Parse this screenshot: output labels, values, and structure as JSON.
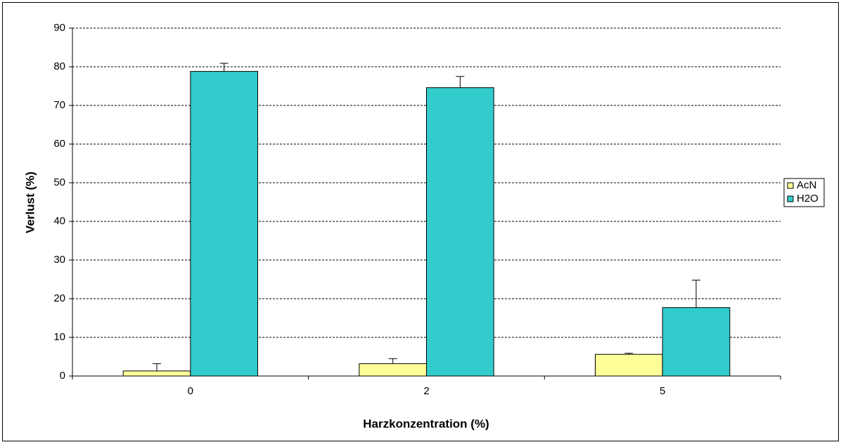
{
  "chart_data": {
    "type": "bar",
    "x_label": "Harzkonzentration (%)",
    "y_label": "Verlust (%)",
    "categories": [
      "0",
      "2",
      "5"
    ],
    "series": [
      {
        "name": "AcN",
        "color": "#ffff99",
        "values": [
          1.3,
          3.2,
          5.6
        ],
        "errors": [
          1.9,
          1.3,
          0.3
        ]
      },
      {
        "name": "H2O",
        "color": "#33cccc",
        "values": [
          78.8,
          74.6,
          17.7
        ],
        "errors": [
          2.1,
          2.9,
          7.1
        ]
      }
    ],
    "ylim": [
      0,
      90
    ],
    "yticks": [
      0,
      10,
      20,
      30,
      40,
      50,
      60,
      70,
      80,
      90
    ],
    "grid": true,
    "legend": "right"
  }
}
